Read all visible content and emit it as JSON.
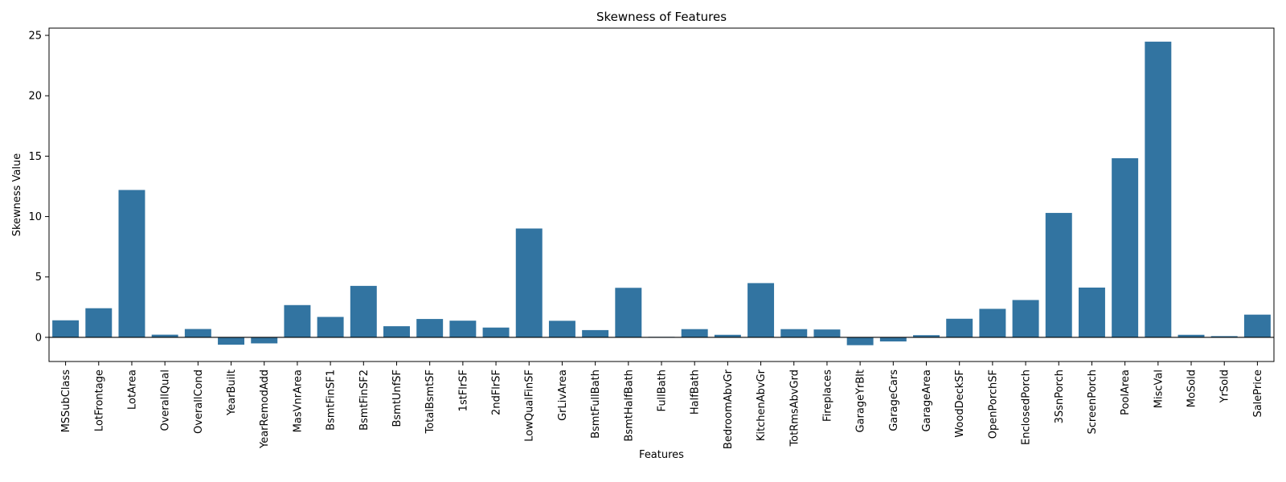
{
  "chart_data": {
    "type": "bar",
    "title": "Skewness of Features",
    "xlabel": "Features",
    "ylabel": "Skewness Value",
    "ylim": [
      -2,
      25.6
    ],
    "yticks": [
      0,
      5,
      10,
      15,
      20,
      25
    ],
    "yticklabels": [
      "0",
      "5",
      "10",
      "15",
      "20",
      "25"
    ],
    "grid": false,
    "legend": "none",
    "bar_color": "#3274a1",
    "categories": [
      "MSSubClass",
      "LotFrontage",
      "LotArea",
      "OverallQual",
      "OverallCond",
      "YearBuilt",
      "YearRemodAdd",
      "MasVnrArea",
      "BsmtFinSF1",
      "BsmtFinSF2",
      "BsmtUnfSF",
      "TotalBsmtSF",
      "1stFlrSF",
      "2ndFlrSF",
      "LowQualFinSF",
      "GrLivArea",
      "BsmtFullBath",
      "BsmtHalfBath",
      "FullBath",
      "HalfBath",
      "BedroomAbvGr",
      "KitchenAbvGr",
      "TotRmsAbvGrd",
      "Fireplaces",
      "GarageYrBlt",
      "GarageCars",
      "GarageArea",
      "WoodDeckSF",
      "OpenPorchSF",
      "EnclosedPorch",
      "3SsnPorch",
      "ScreenPorch",
      "PoolArea",
      "MiscVal",
      "MoSold",
      "YrSold",
      "SalePrice"
    ],
    "values": [
      1.41,
      2.41,
      12.2,
      0.22,
      0.69,
      -0.61,
      -0.5,
      2.67,
      1.69,
      4.26,
      0.92,
      1.52,
      1.38,
      0.81,
      9.01,
      1.37,
      0.6,
      4.1,
      0.04,
      0.68,
      0.21,
      4.49,
      0.68,
      0.65,
      -0.65,
      -0.34,
      0.18,
      1.54,
      2.36,
      3.09,
      10.3,
      4.12,
      14.83,
      24.48,
      0.21,
      0.1,
      1.88
    ]
  }
}
